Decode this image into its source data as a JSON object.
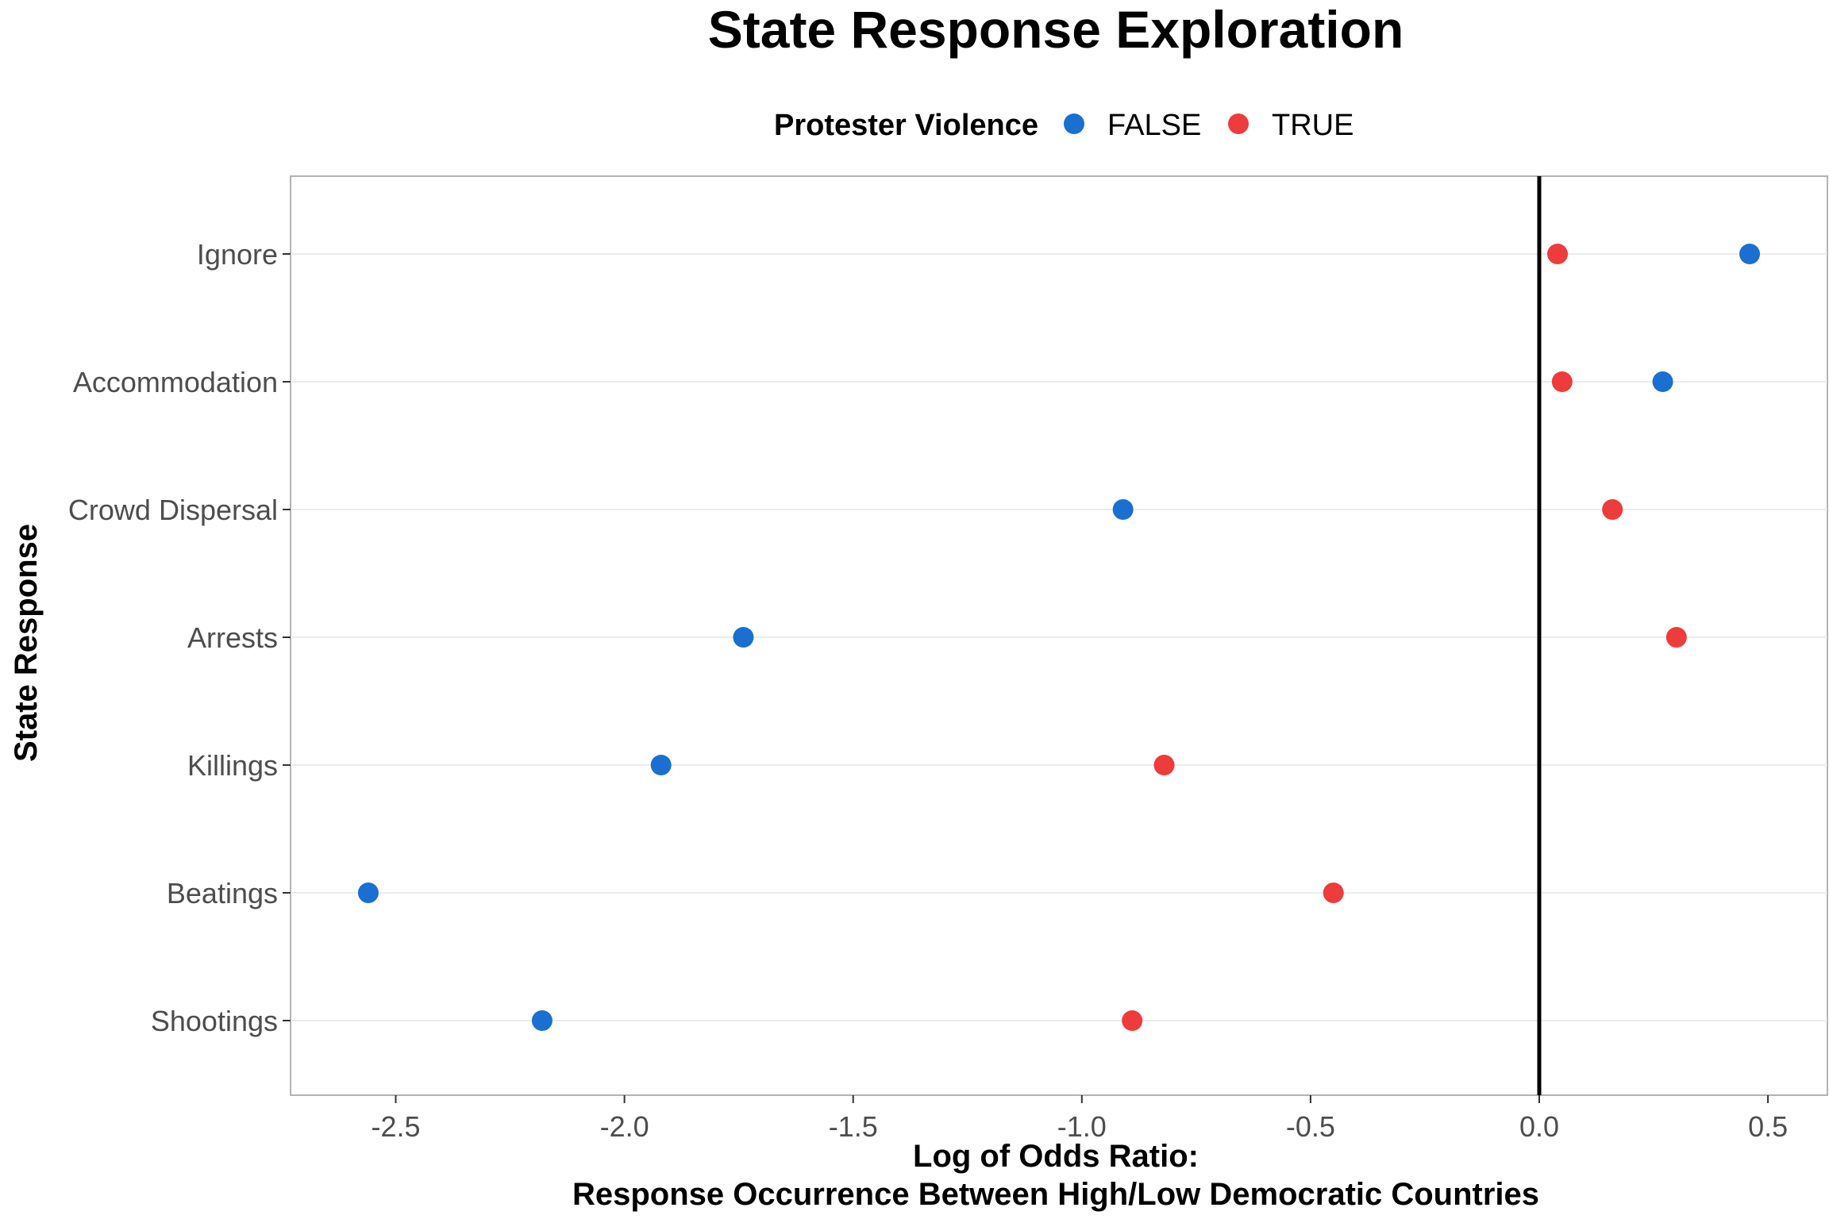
{
  "chart_data": {
    "type": "scatter",
    "title": "State Response Exploration",
    "xlabel_lines": [
      "Log of Odds Ratio:",
      "Response Occurrence Between High/Low Democratic Countries"
    ],
    "ylabel": "State Response",
    "legend": {
      "title": "Protester Violence",
      "placement": "top",
      "entries": [
        "FALSE",
        "TRUE"
      ]
    },
    "categories": [
      "Ignore",
      "Accommodation",
      "Crowd Dispersal",
      "Arrests",
      "Killings",
      "Beatings",
      "Shootings"
    ],
    "xlim": [
      -2.73,
      0.63
    ],
    "x_ticks": [
      -2.5,
      -2.0,
      -1.5,
      -1.0,
      -0.5,
      0.0,
      0.5
    ],
    "x_tick_labels": [
      "-2.5",
      "-2.0",
      "-1.5",
      "-1.0",
      "-0.5",
      "0.0",
      "0.5"
    ],
    "reference_line_x": 0,
    "grid": true,
    "series": [
      {
        "name": "FALSE",
        "color": "#1a6fd1",
        "values": [
          0.46,
          0.27,
          -0.91,
          -1.74,
          -1.92,
          -2.56,
          -2.18
        ]
      },
      {
        "name": "TRUE",
        "color": "#ee3b3b",
        "values": [
          0.04,
          0.05,
          0.16,
          0.3,
          -0.82,
          -0.45,
          -0.89
        ]
      }
    ]
  }
}
